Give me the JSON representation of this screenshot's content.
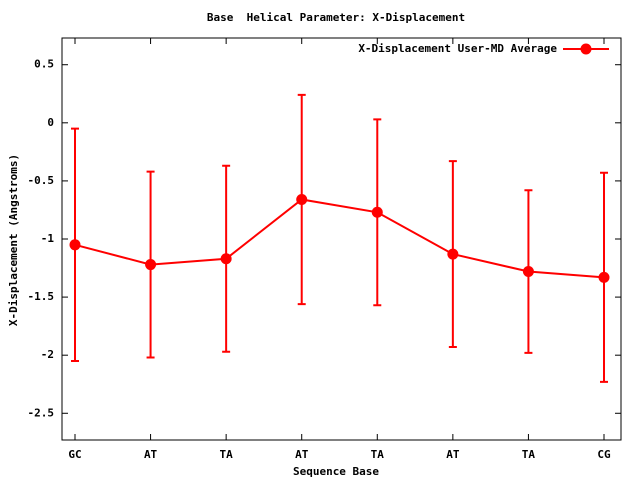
{
  "chart_data": {
    "type": "line",
    "title": "Base  Helical Parameter: X-Displacement",
    "x_label": "Sequence Base",
    "y_label": "X-Displacement (Angstroms)",
    "categories": [
      "GC",
      "AT",
      "TA",
      "AT",
      "TA",
      "AT",
      "TA",
      "CG"
    ],
    "series": [
      {
        "name": "X-Displacement User-MD Average",
        "color": "#ff0000",
        "values": [
          -1.05,
          -1.22,
          -1.17,
          -0.66,
          -0.77,
          -1.13,
          -1.28,
          -1.33
        ],
        "errors": [
          1.0,
          0.8,
          0.8,
          0.9,
          0.8,
          0.8,
          0.7,
          0.9
        ]
      }
    ],
    "ylim": [
      -2.73,
      0.73
    ],
    "yticks": [
      -2.5,
      -2,
      -1.5,
      -1,
      -0.5,
      0,
      0.5
    ],
    "legend": "top-right"
  }
}
